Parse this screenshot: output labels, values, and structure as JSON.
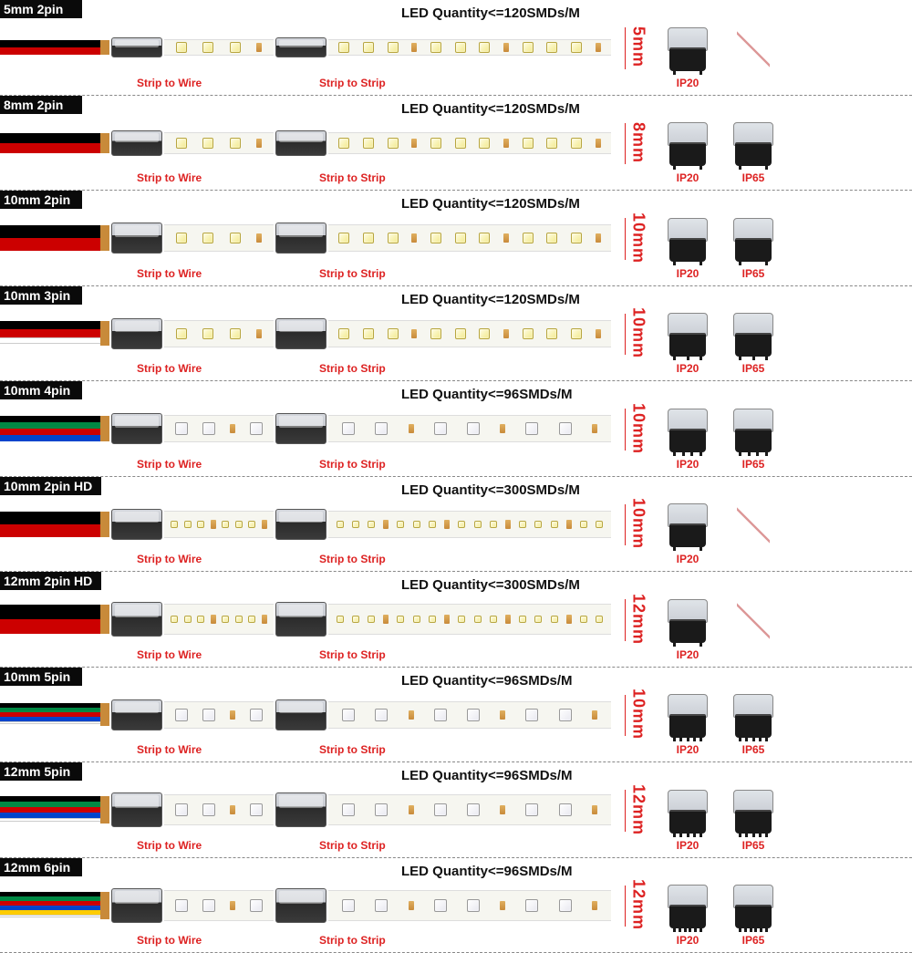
{
  "labels": {
    "strip_to_wire": "Strip to Wire",
    "strip_to_strip": "Strip to Strip",
    "ip20": "IP20",
    "ip65": "IP65"
  },
  "colors": {
    "header_bg": "#0a0a0a",
    "header_text": "#ffffff",
    "accent_red": "#dd2222",
    "strip_bg": "#f6f6f0",
    "connector_top": "#d4d7dd",
    "connector_bottom": "#2a2a2a",
    "copper": "#c88a3a"
  },
  "wire_palettes": {
    "2pin": [
      "#000000",
      "#cc0000"
    ],
    "3pin": [
      "#000000",
      "#cc0000",
      "#ffffff"
    ],
    "4pin": [
      "#000000",
      "#008844",
      "#cc0000",
      "#0044cc"
    ],
    "5pin": [
      "#000000",
      "#008844",
      "#cc0000",
      "#0044cc",
      "#ffffff"
    ],
    "6pin": [
      "#000000",
      "#008844",
      "#cc0000",
      "#0044cc",
      "#ffcc00",
      "#ffffff"
    ]
  },
  "rows": [
    {
      "header": "5mm 2pin",
      "led_qty": "LED Quantity<=120SMDs/M",
      "width_label": "5mm",
      "wires": "2pin",
      "led_type": "smd",
      "strip_h": 18,
      "ip20": true,
      "ip65": false
    },
    {
      "header": "8mm 2pin",
      "led_qty": "LED Quantity<=120SMDs/M",
      "width_label": "8mm",
      "wires": "2pin",
      "led_type": "smd",
      "strip_h": 24,
      "ip20": true,
      "ip65": true
    },
    {
      "header": "10mm 2pin",
      "led_qty": "LED Quantity<=120SMDs/M",
      "width_label": "10mm",
      "wires": "2pin",
      "led_type": "smd",
      "strip_h": 30,
      "ip20": true,
      "ip65": true
    },
    {
      "header": "10mm 3pin",
      "led_qty": "LED Quantity<=120SMDs/M",
      "width_label": "10mm",
      "wires": "3pin",
      "led_type": "smd",
      "strip_h": 30,
      "ip20": true,
      "ip65": true
    },
    {
      "header": "10mm 4pin",
      "led_qty": "LED Quantity<=96SMDs/M",
      "width_label": "10mm",
      "wires": "4pin",
      "led_type": "rgb",
      "strip_h": 30,
      "ip20": true,
      "ip65": true
    },
    {
      "header": "10mm 2pin HD",
      "led_qty": "LED Quantity<=300SMDs/M",
      "width_label": "10mm",
      "wires": "2pin",
      "led_type": "hd",
      "strip_h": 30,
      "ip20": true,
      "ip65": false
    },
    {
      "header": "12mm 2pin HD",
      "led_qty": "LED Quantity<=300SMDs/M",
      "width_label": "12mm",
      "wires": "2pin",
      "led_type": "hd",
      "strip_h": 34,
      "ip20": true,
      "ip65": false
    },
    {
      "header": "10mm 5pin",
      "led_qty": "LED Quantity<=96SMDs/M",
      "width_label": "10mm",
      "wires": "5pin",
      "led_type": "rgb",
      "strip_h": 30,
      "ip20": true,
      "ip65": true
    },
    {
      "header": "12mm 5pin",
      "led_qty": "LED Quantity<=96SMDs/M",
      "width_label": "12mm",
      "wires": "5pin",
      "led_type": "rgb",
      "strip_h": 34,
      "ip20": true,
      "ip65": true
    },
    {
      "header": "12mm 6pin",
      "led_qty": "LED Quantity<=96SMDs/M",
      "width_label": "12mm",
      "wires": "6pin",
      "led_type": "rgb",
      "strip_h": 34,
      "ip20": true,
      "ip65": true
    }
  ]
}
